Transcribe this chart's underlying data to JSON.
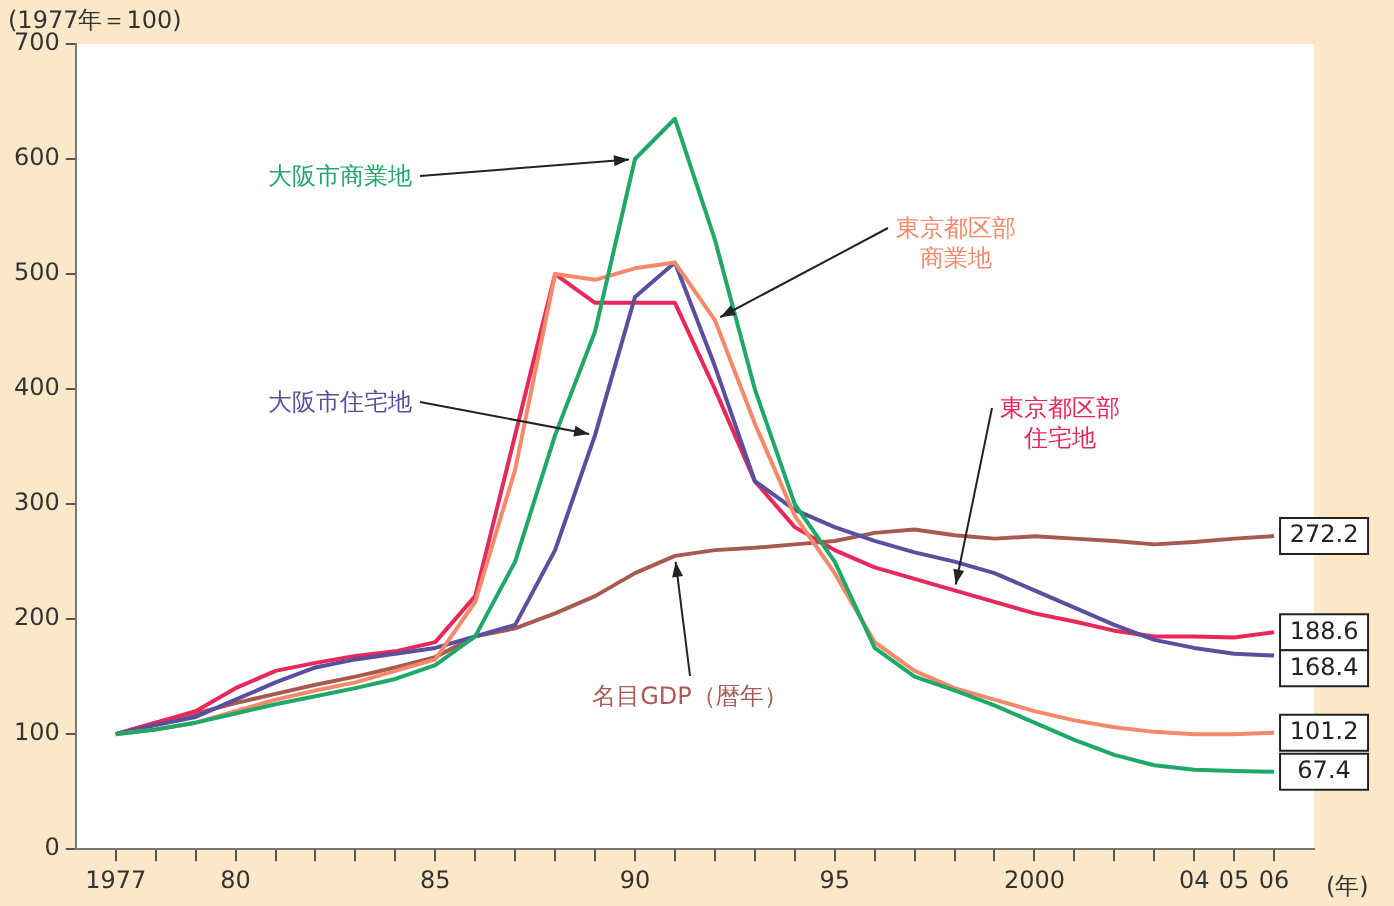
{
  "chart_data": {
    "type": "line",
    "ylabel": "(1977年＝100)",
    "xlabel": "(年)",
    "x": [
      1977,
      1978,
      1979,
      1980,
      1981,
      1982,
      1983,
      1984,
      1985,
      1986,
      1987,
      1988,
      1989,
      1990,
      1991,
      1992,
      1993,
      1994,
      1995,
      1996,
      1997,
      1998,
      1999,
      2000,
      2001,
      2002,
      2003,
      2004,
      2005,
      2006
    ],
    "xlim": [
      1976,
      2007
    ],
    "xticks": [
      {
        "value": 1977,
        "label": "1977"
      },
      {
        "value": 1978,
        "label": null
      },
      {
        "value": 1979,
        "label": null
      },
      {
        "value": 1980,
        "label": "80"
      },
      {
        "value": 1981,
        "label": null
      },
      {
        "value": 1982,
        "label": null
      },
      {
        "value": 1983,
        "label": null
      },
      {
        "value": 1984,
        "label": null
      },
      {
        "value": 1985,
        "label": "85"
      },
      {
        "value": 1986,
        "label": null
      },
      {
        "value": 1987,
        "label": null
      },
      {
        "value": 1988,
        "label": null
      },
      {
        "value": 1989,
        "label": null
      },
      {
        "value": 1990,
        "label": "90"
      },
      {
        "value": 1991,
        "label": null
      },
      {
        "value": 1992,
        "label": null
      },
      {
        "value": 1993,
        "label": null
      },
      {
        "value": 1994,
        "label": null
      },
      {
        "value": 1995,
        "label": "95"
      },
      {
        "value": 1996,
        "label": null
      },
      {
        "value": 1997,
        "label": null
      },
      {
        "value": 1998,
        "label": null
      },
      {
        "value": 1999,
        "label": null
      },
      {
        "value": 2000,
        "label": "2000"
      },
      {
        "value": 2001,
        "label": null
      },
      {
        "value": 2002,
        "label": null
      },
      {
        "value": 2003,
        "label": null
      },
      {
        "value": 2004,
        "label": "04"
      },
      {
        "value": 2005,
        "label": "05"
      },
      {
        "value": 2006,
        "label": "06"
      }
    ],
    "ylim": [
      0,
      700
    ],
    "yticks": [
      0,
      100,
      200,
      300,
      400,
      500,
      600,
      700
    ],
    "grid": false,
    "legend": false,
    "marker": "none",
    "line_style": "solid",
    "series": [
      {
        "name": "大阪市商業地",
        "color": "#1fa868",
        "values": [
          100,
          104,
          110,
          118,
          126,
          133,
          140,
          148,
          160,
          185,
          250,
          360,
          450,
          600,
          635,
          530,
          400,
          300,
          250,
          175,
          150,
          138,
          125,
          110,
          95,
          82,
          73,
          69,
          68,
          67.4
        ],
        "value_labels": [
          null,
          null,
          null,
          null,
          null,
          null,
          null,
          null,
          null,
          null,
          null,
          null,
          null,
          null,
          null,
          null,
          null,
          null,
          null,
          null,
          null,
          null,
          null,
          null,
          null,
          null,
          null,
          null,
          null,
          "67.4"
        ]
      },
      {
        "name": "東京都区部商業地",
        "color": "#f5896a",
        "values": [
          100,
          104,
          110,
          120,
          130,
          138,
          145,
          155,
          165,
          215,
          330,
          500,
          495,
          505,
          510,
          460,
          370,
          290,
          240,
          180,
          155,
          140,
          130,
          120,
          112,
          106,
          102,
          100,
          100,
          101.2
        ],
        "value_labels": [
          null,
          null,
          null,
          null,
          null,
          null,
          null,
          null,
          null,
          null,
          null,
          null,
          null,
          null,
          null,
          null,
          null,
          null,
          null,
          null,
          null,
          null,
          null,
          null,
          null,
          null,
          null,
          null,
          null,
          "101.2"
        ]
      },
      {
        "name": "大阪市住宅地",
        "color": "#5a4e9e",
        "values": [
          100,
          108,
          115,
          130,
          145,
          158,
          165,
          170,
          175,
          185,
          195,
          260,
          360,
          480,
          510,
          420,
          320,
          295,
          280,
          268,
          258,
          250,
          240,
          225,
          210,
          195,
          182,
          175,
          170,
          168.4
        ],
        "value_labels": [
          null,
          null,
          null,
          null,
          null,
          null,
          null,
          null,
          null,
          null,
          null,
          null,
          null,
          null,
          null,
          null,
          null,
          null,
          null,
          null,
          null,
          null,
          null,
          null,
          null,
          null,
          null,
          null,
          null,
          "168.4"
        ]
      },
      {
        "name": "東京都区部住宅地",
        "color": "#e8285a",
        "values": [
          100,
          110,
          120,
          140,
          155,
          162,
          168,
          172,
          180,
          220,
          360,
          500,
          475,
          475,
          475,
          400,
          320,
          280,
          260,
          245,
          235,
          225,
          215,
          205,
          198,
          190,
          185,
          185,
          184,
          188.6
        ],
        "value_labels": [
          null,
          null,
          null,
          null,
          null,
          null,
          null,
          null,
          null,
          null,
          null,
          null,
          null,
          null,
          null,
          null,
          null,
          null,
          null,
          null,
          null,
          null,
          null,
          null,
          null,
          null,
          null,
          null,
          null,
          "188.6"
        ]
      },
      {
        "name": "名目GDP（暦年）",
        "color": "#a85a50",
        "values": [
          100,
          110,
          118,
          127,
          135,
          143,
          150,
          158,
          167,
          185,
          192,
          205,
          220,
          240,
          255,
          260,
          262,
          265,
          268,
          275,
          278,
          273,
          270,
          272,
          270,
          268,
          265,
          267,
          270,
          272.2
        ],
        "value_labels": [
          null,
          null,
          null,
          null,
          null,
          null,
          null,
          null,
          null,
          null,
          null,
          null,
          null,
          null,
          null,
          null,
          null,
          null,
          null,
          null,
          null,
          null,
          null,
          null,
          null,
          null,
          null,
          null,
          null,
          "272.2"
        ]
      }
    ]
  }
}
